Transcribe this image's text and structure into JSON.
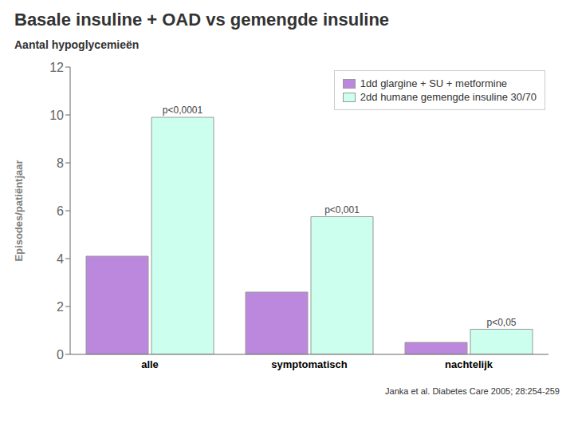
{
  "chart_data": {
    "type": "bar",
    "title": "Basale insuline + OAD vs gemengde insuline",
    "subtitle": "Aantal hypoglycemieën",
    "y_label": "Episodes/patiëntjaar",
    "categories": [
      "alle",
      "symptomatisch",
      "nachtelijk"
    ],
    "series": [
      {
        "name": "1dd glargine + SU + metformine",
        "color": "#bb88dd",
        "values": [
          4.1,
          2.6,
          0.5
        ]
      },
      {
        "name": "2dd humane gemengde insuline 30/70",
        "color": "#ccffee",
        "values": [
          9.9,
          5.75,
          1.05
        ]
      }
    ],
    "ylim": [
      0,
      12
    ],
    "yticks": [
      0,
      2,
      4,
      6,
      8,
      10,
      12
    ],
    "grid": false,
    "legend": "upper right",
    "annotations": [
      {
        "text": "p<0,0001",
        "category": "alle"
      },
      {
        "text": "p<0,001",
        "category": "symptomatisch"
      },
      {
        "text": "p<0,05",
        "category": "nachtelijk"
      },
      {
        "text": "Janka et al. Diabetes Care 2005; 28:254-259"
      }
    ]
  }
}
